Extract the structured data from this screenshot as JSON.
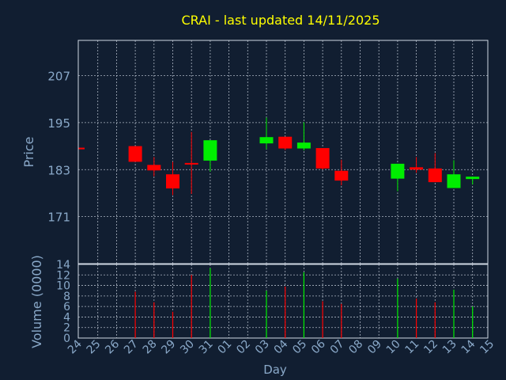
{
  "chart_data": {
    "type": "candlestick",
    "title": "CRAI - last updated 14/11/2025",
    "ylabel": "Price",
    "volume_label": "Volume (0000)",
    "xlabel": "Day",
    "price_ylim": [
      159,
      216
    ],
    "price_ticks": [
      171,
      183,
      195,
      207
    ],
    "volume_ylim": [
      0,
      14
    ],
    "volume_ticks": [
      0,
      2,
      4,
      6,
      8,
      10,
      12,
      14
    ],
    "x_ticks": [
      "24",
      "25",
      "26",
      "27",
      "28",
      "29",
      "30",
      "31",
      "01",
      "02",
      "03",
      "04",
      "05",
      "06",
      "07",
      "08",
      "09",
      "10",
      "11",
      "12",
      "13",
      "14",
      "15"
    ],
    "grid": true,
    "colors": {
      "up": "#00ee00",
      "down": "#ff0000",
      "background": "#111e31",
      "title": "#ffff00",
      "axis_text": "#8aa9c9"
    },
    "candles": [
      {
        "day": "24",
        "open": 188.6,
        "close": 188.2,
        "high": 188.6,
        "low": 188.2
      },
      {
        "day": "27",
        "open": 189.0,
        "close": 185.0,
        "high": 189.0,
        "low": 185.0
      },
      {
        "day": "28",
        "open": 184.2,
        "close": 182.8,
        "high": 186.2,
        "low": 181.3
      },
      {
        "day": "29",
        "open": 181.8,
        "close": 178.2,
        "high": 185.0,
        "low": 176.5
      },
      {
        "day": "30",
        "open": 184.7,
        "close": 184.3,
        "high": 192.6,
        "low": 176.8
      },
      {
        "day": "31",
        "open": 185.3,
        "close": 190.5,
        "high": 190.5,
        "low": 182.5
      },
      {
        "day": "03",
        "open": 189.7,
        "close": 191.3,
        "high": 196.3,
        "low": 188.2
      },
      {
        "day": "04",
        "open": 191.4,
        "close": 188.4,
        "high": 191.4,
        "low": 188.0
      },
      {
        "day": "05",
        "open": 188.4,
        "close": 189.9,
        "high": 195.1,
        "low": 187.9
      },
      {
        "day": "06",
        "open": 188.5,
        "close": 183.3,
        "high": 188.5,
        "low": 183.0
      },
      {
        "day": "07",
        "open": 182.7,
        "close": 180.2,
        "high": 185.5,
        "low": 179.0
      },
      {
        "day": "10",
        "open": 180.7,
        "close": 184.5,
        "high": 184.5,
        "low": 177.5
      },
      {
        "day": "11",
        "open": 183.6,
        "close": 183.0,
        "high": 186.2,
        "low": 182.2
      },
      {
        "day": "12",
        "open": 183.3,
        "close": 179.8,
        "high": 187.2,
        "low": 179.8
      },
      {
        "day": "13",
        "open": 178.3,
        "close": 181.8,
        "high": 185.4,
        "low": 178.3
      },
      {
        "day": "14",
        "open": 180.6,
        "close": 181.2,
        "high": 181.2,
        "low": 179.2
      }
    ],
    "volume": [
      {
        "day": "27",
        "value": 8.8,
        "dir": "down"
      },
      {
        "day": "28",
        "value": 6.8,
        "dir": "down"
      },
      {
        "day": "29",
        "value": 5.0,
        "dir": "down"
      },
      {
        "day": "30",
        "value": 12.0,
        "dir": "down"
      },
      {
        "day": "31",
        "value": 13.3,
        "dir": "up"
      },
      {
        "day": "03",
        "value": 9.0,
        "dir": "up"
      },
      {
        "day": "04",
        "value": 9.8,
        "dir": "down"
      },
      {
        "day": "05",
        "value": 12.5,
        "dir": "up"
      },
      {
        "day": "06",
        "value": 7.0,
        "dir": "down"
      },
      {
        "day": "07",
        "value": 6.5,
        "dir": "down"
      },
      {
        "day": "10",
        "value": 11.3,
        "dir": "up"
      },
      {
        "day": "11",
        "value": 7.5,
        "dir": "down"
      },
      {
        "day": "12",
        "value": 6.8,
        "dir": "down"
      },
      {
        "day": "13",
        "value": 9.2,
        "dir": "up"
      },
      {
        "day": "14",
        "value": 6.0,
        "dir": "up"
      }
    ]
  }
}
